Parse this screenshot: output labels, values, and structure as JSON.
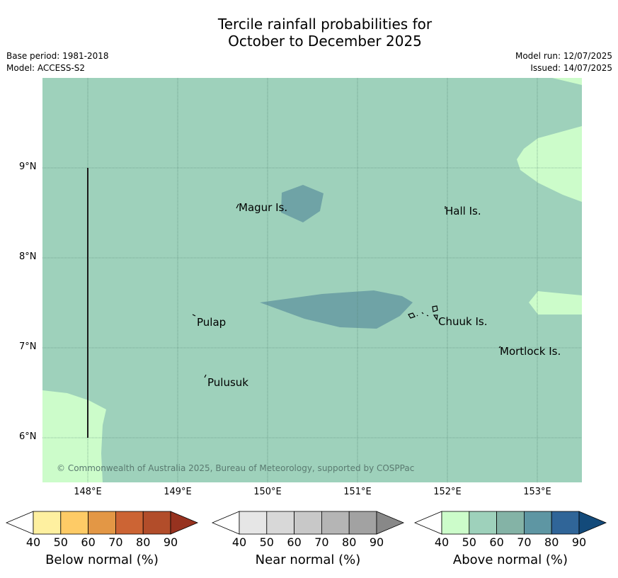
{
  "header": {
    "title_line1": "Tercile rainfall probabilities for",
    "title_line2": "October to December 2025",
    "base_period": "Base period: 1981-2018",
    "model": "Model: ACCESS-S2",
    "model_run": "Model run: 12/07/2025",
    "issued": "Issued: 14/07/2025"
  },
  "map": {
    "places": [
      "Magur Is.",
      "Hall Is.",
      "Pulap",
      "Chuuk Is.",
      "Mortlock Is.",
      "Pulusuk"
    ],
    "lat_labels": [
      "9°N",
      "8°N",
      "7°N",
      "6°N"
    ],
    "lon_labels": [
      "148°E",
      "149°E",
      "150°E",
      "151°E",
      "152°E",
      "153°E"
    ],
    "copyright": "© Commonwealth of Australia 2025, Bureau of Meteorology, supported by COSPPac",
    "colors": {
      "background_above_50": "#9ed1bb",
      "above_40": "#ccfcca",
      "above_60": "#6fa3a6"
    }
  },
  "legend": {
    "ticks": [
      "40",
      "50",
      "60",
      "70",
      "80",
      "90"
    ],
    "below": {
      "label": "Below normal (%)",
      "colors": [
        "#fef0a0",
        "#fecb66",
        "#e39745",
        "#cc6434",
        "#b24d2a",
        "#97321f"
      ]
    },
    "near": {
      "label": "Near normal (%)",
      "colors": [
        "#e6e6e6",
        "#d8d8d8",
        "#c8c8c8",
        "#b5b5b5",
        "#a2a2a2",
        "#888888"
      ]
    },
    "above": {
      "label": "Above normal (%)",
      "colors": [
        "#ccfcca",
        "#9ed1bb",
        "#84b3a6",
        "#5e96a3",
        "#306598",
        "#134a7a"
      ]
    }
  }
}
